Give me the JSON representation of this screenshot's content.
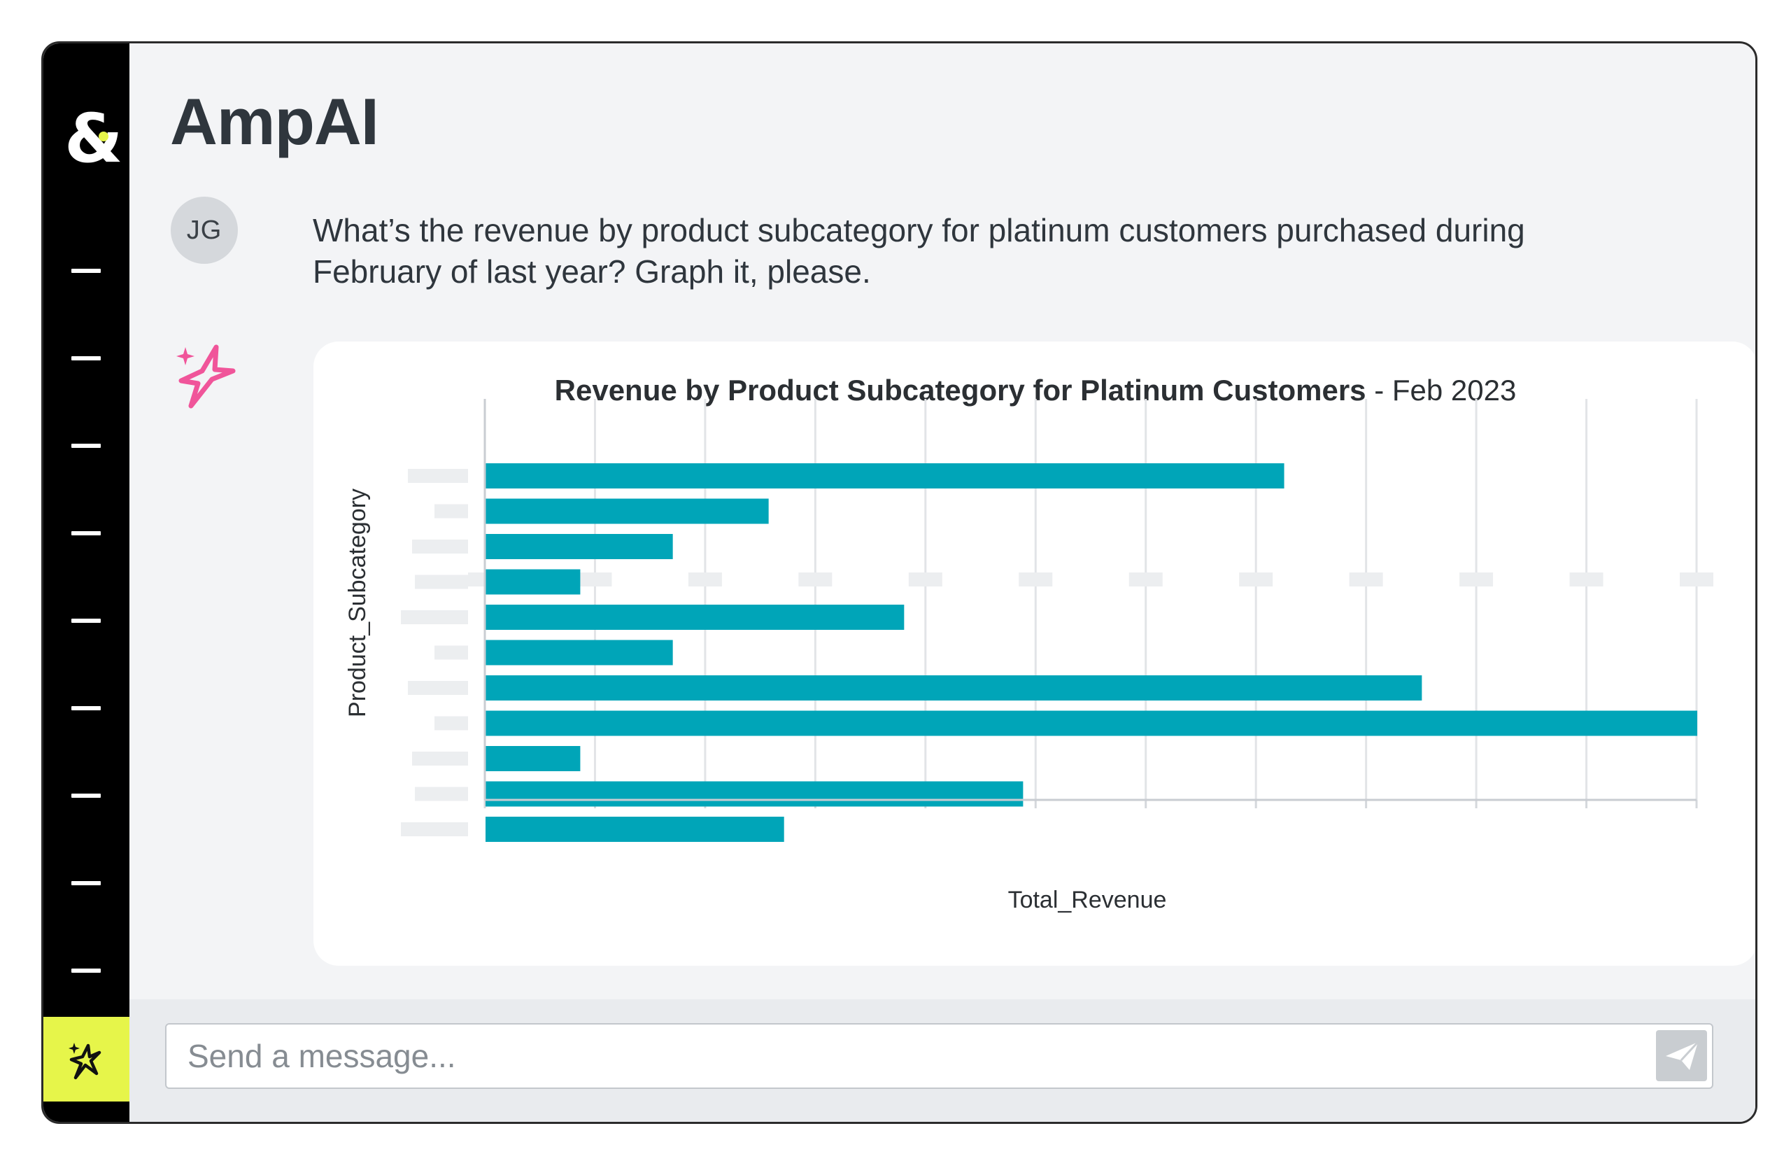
{
  "app": {
    "title": "AmpAI",
    "logo_text": "&"
  },
  "sidebar": {
    "items": [
      {
        "icon": "menu-dash"
      },
      {
        "icon": "menu-dash"
      },
      {
        "icon": "menu-dash"
      },
      {
        "icon": "menu-dash"
      },
      {
        "icon": "menu-dash"
      },
      {
        "icon": "menu-dash"
      },
      {
        "icon": "menu-dash"
      },
      {
        "icon": "menu-dash"
      },
      {
        "icon": "menu-dash"
      }
    ],
    "active_icon": "sparkle-icon",
    "accent_color": "#e6f54a"
  },
  "conversation": {
    "user": {
      "initials": "JG",
      "message": "What’s the revenue by product subcategory for platinum customers purchased during February of last year? Graph it, please."
    },
    "assistant": {
      "icon": "sparkle-icon",
      "icon_color": "#f0559a"
    }
  },
  "chart_data": {
    "type": "bar",
    "orientation": "horizontal",
    "title": "Revenue by Product Subcategory for Platinum Customers",
    "subtitle": "Feb 2023",
    "xlabel": "Total_Revenue",
    "ylabel": "Product_Subcategory",
    "xlim": [
      0,
      11
    ],
    "grid": true,
    "bar_color": "#00a5b8",
    "values": [
      7.25,
      2.57,
      1.7,
      0.86,
      3.8,
      1.7,
      8.5,
      11.1,
      0.86,
      4.88,
      2.71
    ]
  },
  "composer": {
    "placeholder": "Send a message...",
    "send_icon": "send-icon"
  }
}
